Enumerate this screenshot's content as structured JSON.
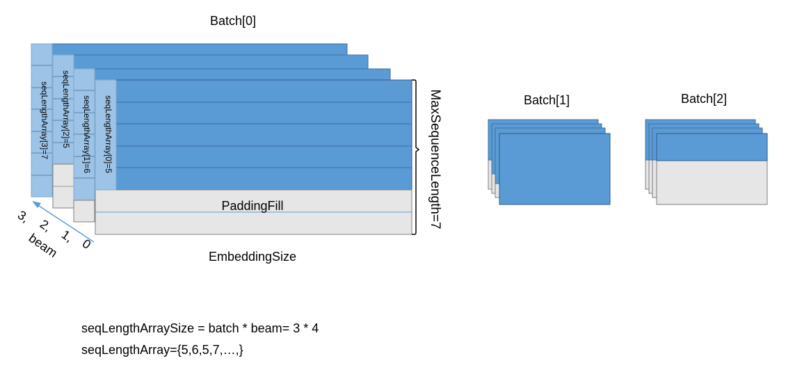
{
  "batches": [
    {
      "label": "Batch[0]",
      "seq_lengths": [
        5,
        6,
        5,
        7
      ],
      "max_sequence_length": 7
    },
    {
      "label": "Batch[1]"
    },
    {
      "label": "Batch[2]"
    }
  ],
  "seq_length_labels": [
    "seqLengthArray[0]=5",
    "seqLengthArray[1]=6",
    "seqLengthArray[2]=5",
    "seqLengthArray[3]=7"
  ],
  "labels": {
    "padding_fill": "PaddingFill",
    "max_sequence_length": "MaxSequenceLength=7",
    "embedding_size": "EmbeddingSize",
    "beam": "beam",
    "beam_indices": [
      "3,",
      "2,",
      "1,",
      "0"
    ]
  },
  "formulas": {
    "array_size": "seqLengthArraySize = batch * beam= 3 * 4",
    "array_values": "seqLengthArray={5,6,5,7,…,}"
  },
  "colors": {
    "sequence_fill": "#5B9BD5",
    "sequence_light": "#9DC3E6",
    "padding_fill": "#E7E6E6",
    "border": "#2E5A8A",
    "padding_border": "#7F7F7F",
    "arrow": "#5B9BD5"
  }
}
